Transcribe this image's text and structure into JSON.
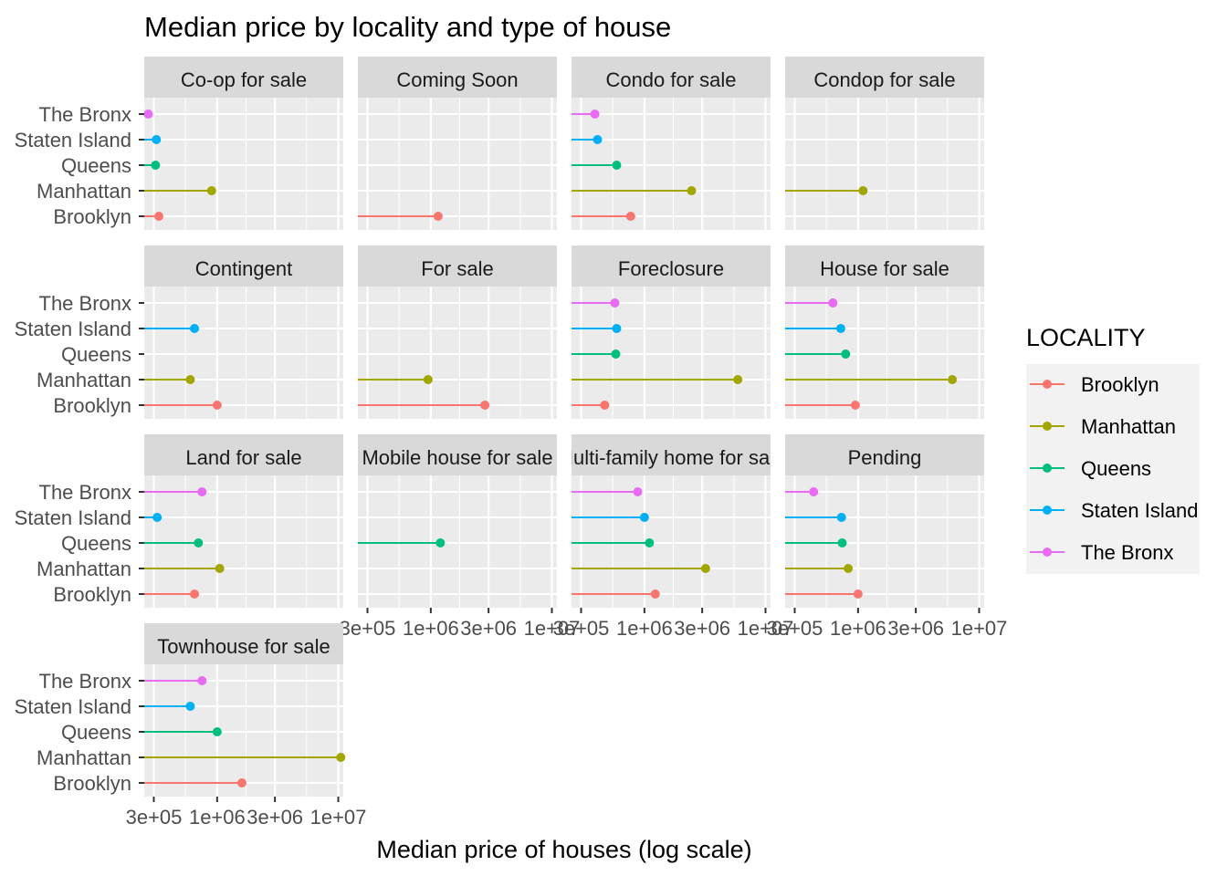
{
  "chart_data": {
    "type": "lollipop",
    "title": "Median price by locality and type of house",
    "xlabel": "Median price of houses (log scale)",
    "ylabel": "",
    "x_scale": "log10",
    "xlim": [
      250000,
      11000000
    ],
    "x_ticks": [
      {
        "value": 300000,
        "label": "3e+05"
      },
      {
        "value": 1000000,
        "label": "1e+06"
      },
      {
        "value": 3000000,
        "label": "3e+06"
      },
      {
        "value": 10000000,
        "label": "1e+07"
      }
    ],
    "categories": [
      "Brooklyn",
      "Manhattan",
      "Queens",
      "Staten Island",
      "The Bronx"
    ],
    "legend": {
      "title": "LOCALITY",
      "position": "right",
      "entries": [
        {
          "name": "Brooklyn",
          "color": "#F8766D"
        },
        {
          "name": "Manhattan",
          "color": "#A3A500"
        },
        {
          "name": "Queens",
          "color": "#00BF7D"
        },
        {
          "name": "Staten Island",
          "color": "#00B0F6"
        },
        {
          "name": "The Bronx",
          "color": "#E76BF3"
        }
      ]
    },
    "grid": true,
    "panels": [
      {
        "label": "Co-op for sale",
        "values": {
          "Brooklyn": 330000,
          "Manhattan": 900000,
          "Queens": 310000,
          "Staten Island": 315000,
          "The Bronx": 270000
        }
      },
      {
        "label": "Coming Soon",
        "values": {
          "Brooklyn": 1150000,
          "Manhattan": null,
          "Queens": null,
          "Staten Island": null,
          "The Bronx": null
        }
      },
      {
        "label": "Condo for sale",
        "values": {
          "Brooklyn": 770000,
          "Manhattan": 2450000,
          "Queens": 590000,
          "Staten Island": 410000,
          "The Bronx": 390000
        }
      },
      {
        "label": "Condop for sale",
        "values": {
          "Brooklyn": null,
          "Manhattan": 1100000,
          "Queens": null,
          "Staten Island": null,
          "The Bronx": null
        }
      },
      {
        "label": "Contingent",
        "values": {
          "Brooklyn": 1000000,
          "Manhattan": 600000,
          "Queens": null,
          "Staten Island": 650000,
          "The Bronx": null
        }
      },
      {
        "label": "For sale",
        "values": {
          "Brooklyn": 2800000,
          "Manhattan": 950000,
          "Queens": null,
          "Staten Island": null,
          "The Bronx": null
        }
      },
      {
        "label": "Foreclosure",
        "values": {
          "Brooklyn": 470000,
          "Manhattan": 5900000,
          "Queens": 580000,
          "Staten Island": 590000,
          "The Bronx": 570000
        }
      },
      {
        "label": "House for sale",
        "values": {
          "Brooklyn": 950000,
          "Manhattan": 6000000,
          "Queens": 790000,
          "Staten Island": 720000,
          "The Bronx": 620000
        }
      },
      {
        "label": "Land for sale",
        "values": {
          "Brooklyn": 650000,
          "Manhattan": 1050000,
          "Queens": 700000,
          "Staten Island": 320000,
          "The Bronx": 750000
        }
      },
      {
        "label": "Mobile house for sale",
        "values": {
          "Brooklyn": null,
          "Manhattan": null,
          "Queens": 1200000,
          "Staten Island": null,
          "The Bronx": null
        }
      },
      {
        "label": "Multi-family home for sale",
        "values": {
          "Brooklyn": 1230000,
          "Manhattan": 3200000,
          "Queens": 1100000,
          "Staten Island": 1000000,
          "The Bronx": 880000
        }
      },
      {
        "label": "Pending",
        "values": {
          "Brooklyn": 1000000,
          "Manhattan": 830000,
          "Queens": 740000,
          "Staten Island": 730000,
          "The Bronx": 430000
        }
      },
      {
        "label": "Townhouse for sale",
        "values": {
          "Brooklyn": 1600000,
          "Manhattan": 10500000,
          "Queens": 1000000,
          "Staten Island": 600000,
          "The Bronx": 750000
        }
      }
    ]
  }
}
